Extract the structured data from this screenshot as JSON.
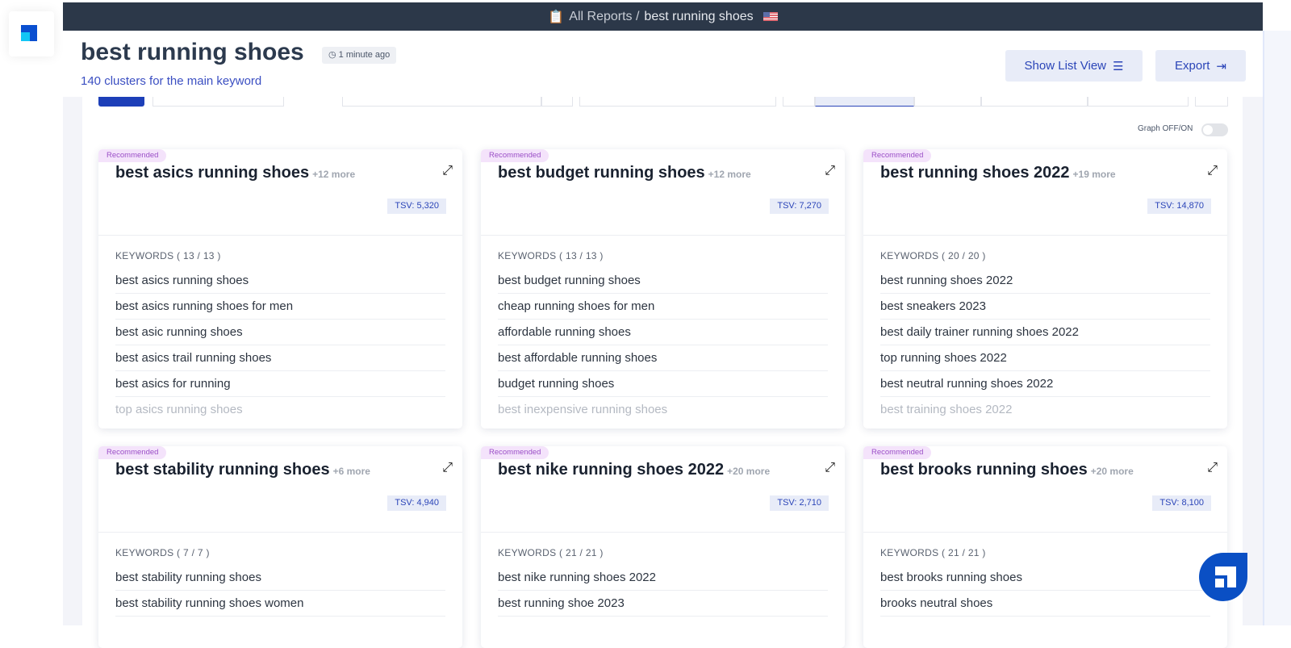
{
  "topbar": {
    "crumb": "All Reports /",
    "current": "best running shoes",
    "country": "US"
  },
  "header": {
    "title": "best running shoes",
    "updated": "1 minute ago",
    "subtitle": "140 clusters for the main keyword",
    "list_view": "Show List View",
    "export": "Export"
  },
  "graph_toggle": {
    "label": "Graph OFF/ON",
    "on": false
  },
  "cards": [
    {
      "badge": "Recommended",
      "title": "best asics running shoes",
      "more": "+12 more",
      "tsv": "TSV: 5,320",
      "kw_label": "KEYWORDS  ( 13 / 13 )",
      "keywords": [
        "best asics running shoes",
        "best asics running shoes for men",
        "best asic running shoes",
        "best asics trail running shoes",
        "best asics for running",
        "top asics running shoes"
      ]
    },
    {
      "badge": "Recommended",
      "title": "best budget running shoes",
      "more": "+12 more",
      "tsv": "TSV: 7,270",
      "kw_label": "KEYWORDS  ( 13 / 13 )",
      "keywords": [
        "best budget running shoes",
        "cheap running shoes for men",
        "affordable running shoes",
        "best affordable running shoes",
        "budget running shoes",
        "best inexpensive running shoes"
      ]
    },
    {
      "badge": "Recommended",
      "title": "best running shoes 2022",
      "more": "+19 more",
      "tsv": "TSV: 14,870",
      "kw_label": "KEYWORDS  ( 20 / 20 )",
      "keywords": [
        "best running shoes 2022",
        "best sneakers 2023",
        "best daily trainer running shoes 2022",
        "top running shoes 2022",
        "best neutral running shoes 2022",
        "best training shoes 2022"
      ]
    },
    {
      "badge": "Recommended",
      "title": "best stability running shoes",
      "more": "+6 more",
      "tsv": "TSV: 4,940",
      "kw_label": "KEYWORDS  ( 7 / 7 )",
      "keywords": [
        "best stability running shoes",
        "best stability running shoes women"
      ]
    },
    {
      "badge": "Recommended",
      "title": "best nike running shoes 2022",
      "more": "+20 more",
      "tsv": "TSV: 2,710",
      "kw_label": "KEYWORDS  ( 21 / 21 )",
      "keywords": [
        "best nike running shoes 2022",
        "best running shoe 2023"
      ]
    },
    {
      "badge": "Recommended",
      "title": "best brooks running shoes",
      "more": "+20 more",
      "tsv": "TSV: 8,100",
      "kw_label": "KEYWORDS  ( 21 / 21 )",
      "keywords": [
        "best brooks running shoes",
        "brooks neutral shoes"
      ]
    }
  ]
}
